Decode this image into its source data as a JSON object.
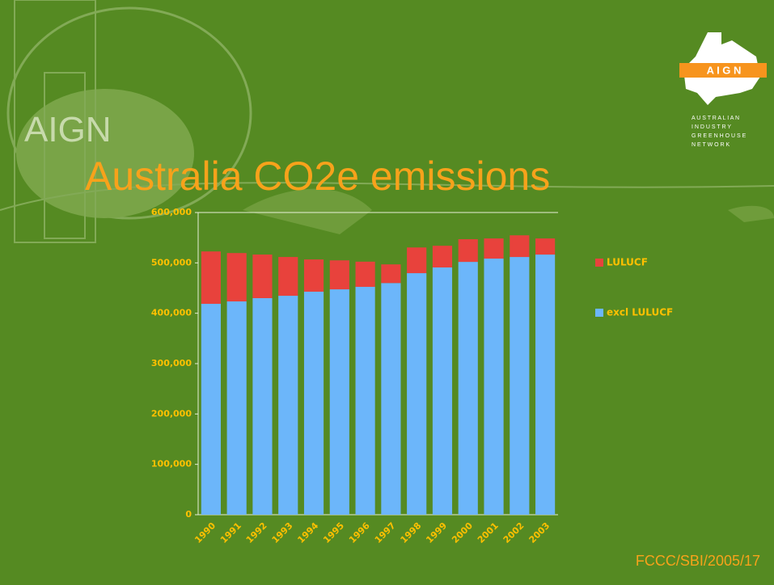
{
  "chart_data": {
    "type": "stacked-bar",
    "title": "Australia CO2e emissions",
    "categories": [
      "1990",
      "1991",
      "1992",
      "1993",
      "1994",
      "1995",
      "1996",
      "1997",
      "1998",
      "1999",
      "2000",
      "2001",
      "2002",
      "2003"
    ],
    "series": [
      {
        "name": "excl LULUCF",
        "color": "#6cb6fa",
        "values": [
          418700,
          423500,
          430000,
          434700,
          442800,
          447500,
          452400,
          460000,
          479600,
          491000,
          502000,
          508500,
          511700,
          516500
        ]
      },
      {
        "name": "LULUCF",
        "color": "#e8423c",
        "values": [
          104000,
          96000,
          86500,
          77000,
          64000,
          57500,
          50000,
          37000,
          51000,
          43000,
          45000,
          40000,
          43000,
          32000
        ]
      }
    ],
    "ylim": [
      0,
      600000
    ],
    "yticks": [
      0,
      {
        "value": 100000,
        "label": "100,000"
      },
      {
        "value": 200000,
        "label": "200,000"
      },
      {
        "value": 300000,
        "label": "300,000"
      },
      {
        "value": 400000,
        "label": "400,000"
      },
      {
        "value": 500000,
        "label": "500,000"
      },
      {
        "value": 600000,
        "label": "600,000"
      }
    ],
    "legend": "right"
  },
  "slide": {
    "watermark": "AIGN",
    "logo_letters": "A I G N",
    "logo_lines": [
      "A U S T R A L I A N",
      "I N D U S T R Y",
      "G R E E N H O U S E",
      "N E T W O R K"
    ],
    "footer": "FCCC/SBI/2005/17"
  }
}
